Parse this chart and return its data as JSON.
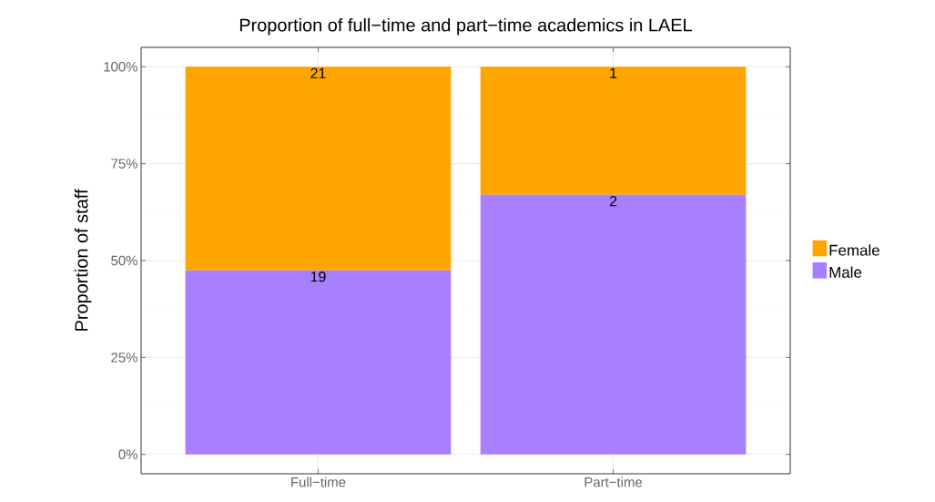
{
  "chart_data": {
    "type": "bar",
    "title": "Proportion of full−time and part−time academics in LAEL",
    "ylabel": "Proportion of staff",
    "categories": [
      "Full−time",
      "Part−time"
    ],
    "series": [
      {
        "name": "Male",
        "color": "#a87fff",
        "values": [
          47.5,
          67
        ]
      },
      {
        "name": "Female",
        "color": "#ffa500",
        "values": [
          52.5,
          33
        ]
      }
    ],
    "annotations": [
      {
        "text": "19",
        "x": "Full−time",
        "y": 47.5
      },
      {
        "text": "2",
        "x": "Part−time",
        "y": 67
      },
      {
        "text": "21",
        "x": "Full−time",
        "y": 100
      },
      {
        "text": "1",
        "x": "Part−time",
        "y": 100
      }
    ],
    "stacked": true,
    "ylim": [
      -5,
      105
    ],
    "yticks": [
      {
        "value": 0,
        "label": "0%"
      },
      {
        "value": 25,
        "label": "25%"
      },
      {
        "value": 50,
        "label": "50%"
      },
      {
        "value": 75,
        "label": "75%"
      },
      {
        "value": 100,
        "label": "100%"
      }
    ],
    "grid": true,
    "legend": "right"
  }
}
